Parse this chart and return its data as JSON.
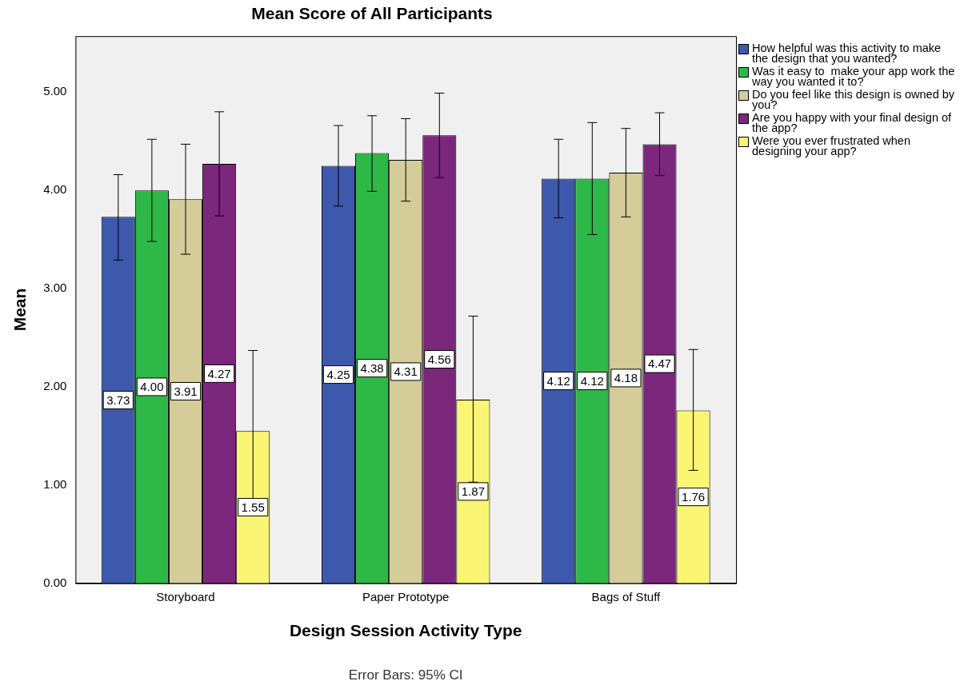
{
  "chart_data": {
    "type": "bar",
    "title": "Mean Score of All Participants",
    "xlabel": "Design Session Activity Type",
    "ylabel": "Mean",
    "categories": [
      "Storyboard",
      "Paper Prototype",
      "Bags of Stuff"
    ],
    "series": [
      {
        "name": "How helpful was this activity to make the design that you wanted?",
        "color": "#3e58ac",
        "values": [
          3.73,
          4.25,
          4.12
        ],
        "value_labels": [
          "3.73",
          "4.25",
          "4.12"
        ],
        "errors": [
          [
            3.29,
            4.16
          ],
          [
            3.84,
            4.66
          ],
          [
            3.72,
            4.52
          ]
        ]
      },
      {
        "name": "Was it easy to  make your app work the way you wanted it to?",
        "color": "#2eb848",
        "values": [
          4.0,
          4.38,
          4.12
        ],
        "value_labels": [
          "4.00",
          "4.38",
          "4.12"
        ],
        "errors": [
          [
            3.48,
            4.52
          ],
          [
            3.99,
            4.76
          ],
          [
            3.55,
            4.69
          ]
        ]
      },
      {
        "name": "Do you feel like this design is owned by you?",
        "color": "#d4cc99",
        "values": [
          3.91,
          4.31,
          4.18
        ],
        "value_labels": [
          "3.91",
          "4.31",
          "4.18"
        ],
        "errors": [
          [
            3.35,
            4.47
          ],
          [
            3.89,
            4.73
          ],
          [
            3.73,
            4.63
          ]
        ]
      },
      {
        "name": "Are you happy with your final design of the app?",
        "color": "#7b277c",
        "values": [
          4.27,
          4.56,
          4.47
        ],
        "value_labels": [
          "4.27",
          "4.56",
          "4.47"
        ],
        "errors": [
          [
            3.74,
            4.8
          ],
          [
            4.13,
            4.99
          ],
          [
            4.15,
            4.79
          ]
        ]
      },
      {
        "name": "Were you ever frustrated when designing your app?",
        "color": "#fbf574",
        "values": [
          1.55,
          1.87,
          1.76
        ],
        "value_labels": [
          "1.55",
          "1.87",
          "1.76"
        ],
        "errors": [
          [
            0.75,
            2.37
          ],
          [
            1.03,
            2.72
          ],
          [
            1.15,
            2.38
          ]
        ]
      }
    ],
    "ylim": [
      0,
      5.57
    ],
    "yticks": [
      {
        "value": 0,
        "label": "0.00"
      },
      {
        "value": 1,
        "label": "1.00"
      },
      {
        "value": 2,
        "label": "2.00"
      },
      {
        "value": 3,
        "label": "3.00"
      },
      {
        "value": 4,
        "label": "4.00"
      },
      {
        "value": 5,
        "label": "5.00"
      }
    ],
    "grid": false,
    "legend": "right",
    "annotations": [
      "Error Bars: 95% CI"
    ]
  }
}
